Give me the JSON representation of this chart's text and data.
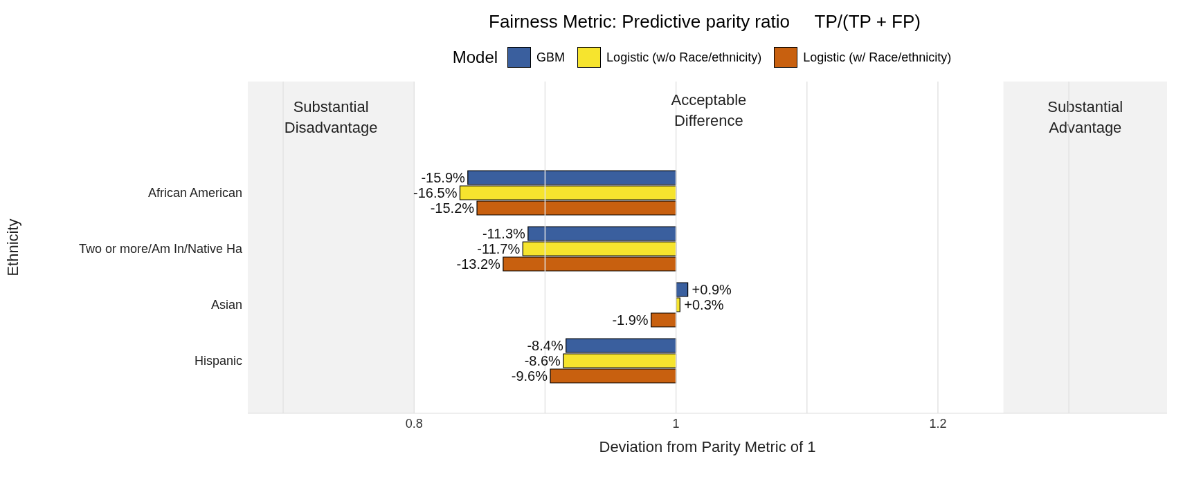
{
  "chart_data": {
    "type": "bar",
    "orientation": "horizontal",
    "title": "Fairness Metric: Predictive parity ratio     TP/(TP + FP)",
    "xlabel": "Deviation from Parity Metric of 1",
    "ylabel": "Ethnicity",
    "legend_title": "Model",
    "legend": "top",
    "grid": "x",
    "categories": [
      "African American",
      "Two or more/Am In/Native Ha",
      "Asian",
      "Hispanic"
    ],
    "series": [
      {
        "name": "GBM",
        "color": "#3a5f9e",
        "base": [
          1,
          1,
          1,
          1
        ],
        "values": [
          -0.159,
          -0.113,
          0.009,
          -0.084
        ],
        "value_labels": [
          "-15.9%",
          "-11.3%",
          "+0.9%",
          "-8.4%"
        ]
      },
      {
        "name": "Logistic (w/o Race/ethnicity)",
        "color": "#f6e42e",
        "base": [
          1,
          1,
          1,
          1
        ],
        "values": [
          -0.165,
          -0.117,
          0.003,
          -0.086
        ],
        "value_labels": [
          "-16.5%",
          "-11.7%",
          "+0.3%",
          "-8.6%"
        ]
      },
      {
        "name": "Logistic (w/ Race/ethnicity)",
        "color": "#c8600f",
        "base": [
          1,
          1,
          1,
          1
        ],
        "values": [
          -0.152,
          -0.132,
          -0.019,
          -0.096
        ],
        "value_labels": [
          "-15.2%",
          "-13.2%",
          "-1.9%",
          "-9.6%"
        ]
      }
    ],
    "xlim": [
      0.673,
      1.375
    ],
    "xticks": [
      {
        "value": 0.7,
        "label": null
      },
      {
        "value": 0.8,
        "label": "0.8"
      },
      {
        "value": 0.9,
        "label": null
      },
      {
        "value": 1,
        "label": "1"
      },
      {
        "value": 1.1,
        "label": null
      },
      {
        "value": 1.2,
        "label": "1.2"
      },
      {
        "value": 1.3,
        "label": null
      }
    ],
    "annotations": [
      "Acceptable\nDifference"
    ],
    "bands": [
      {
        "axis": "x",
        "from": 0.673,
        "to": 0.8,
        "label": "Substantial\nDisadvantage",
        "color": "#f2f2f2"
      },
      {
        "axis": "x",
        "from": 1.25,
        "to": 1.375,
        "label": "Substantial\nAdvantage",
        "color": "#f2f2f2"
      }
    ]
  }
}
